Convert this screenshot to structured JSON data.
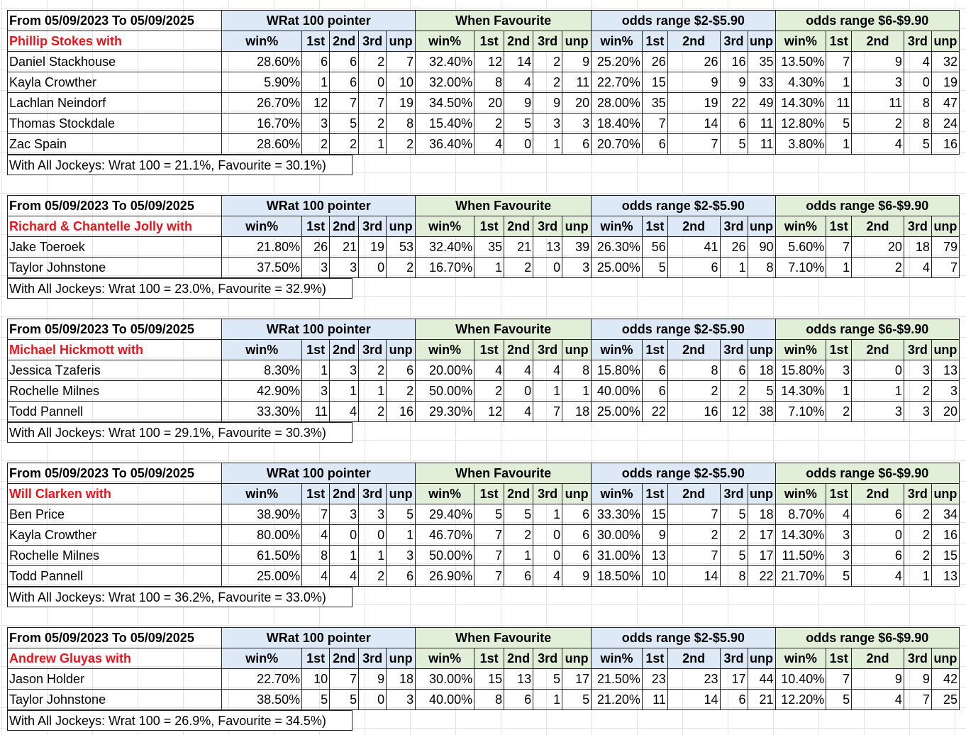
{
  "headers": {
    "range": "From 05/09/2023 To 05/09/2025",
    "wrat": "WRat 100 pointer",
    "fav": "When Favourite",
    "odds1": "odds range $2-$5.90",
    "odds2": "odds range $6-$9.90",
    "cols": [
      "win%",
      "1st",
      "2nd",
      "3rd",
      "unp"
    ]
  },
  "blocks": [
    {
      "trainer": "Phillip Stokes with",
      "summary": "With All Jockeys: Wrat 100 = 21.1%, Favourite = 30.1%)",
      "rows": [
        [
          "Daniel Stackhouse",
          "28.60%",
          "6",
          "6",
          "2",
          "7",
          "32.40%",
          "12",
          "14",
          "2",
          "9",
          "25.20%",
          "26",
          "26",
          "16",
          "35",
          "13.50%",
          "7",
          "9",
          "4",
          "32"
        ],
        [
          "Kayla Crowther",
          "5.90%",
          "1",
          "6",
          "0",
          "10",
          "32.00%",
          "8",
          "4",
          "2",
          "11",
          "22.70%",
          "15",
          "9",
          "9",
          "33",
          "4.30%",
          "1",
          "3",
          "0",
          "19"
        ],
        [
          "Lachlan Neindorf",
          "26.70%",
          "12",
          "7",
          "7",
          "19",
          "34.50%",
          "20",
          "9",
          "9",
          "20",
          "28.00%",
          "35",
          "19",
          "22",
          "49",
          "14.30%",
          "11",
          "11",
          "8",
          "47"
        ],
        [
          "Thomas Stockdale",
          "16.70%",
          "3",
          "5",
          "2",
          "8",
          "15.40%",
          "2",
          "5",
          "3",
          "3",
          "18.40%",
          "7",
          "14",
          "6",
          "11",
          "12.80%",
          "5",
          "2",
          "8",
          "24"
        ],
        [
          "Zac Spain",
          "28.60%",
          "2",
          "2",
          "1",
          "2",
          "36.40%",
          "4",
          "0",
          "1",
          "6",
          "20.70%",
          "6",
          "7",
          "5",
          "11",
          "3.80%",
          "1",
          "4",
          "5",
          "16"
        ]
      ]
    },
    {
      "trainer": "Richard & Chantelle Jolly with",
      "summary": "With All Jockeys: Wrat 100 = 23.0%, Favourite = 32.9%)",
      "rows": [
        [
          "Jake Toeroek",
          "21.80%",
          "26",
          "21",
          "19",
          "53",
          "32.40%",
          "35",
          "21",
          "13",
          "39",
          "26.30%",
          "56",
          "41",
          "26",
          "90",
          "5.60%",
          "7",
          "20",
          "18",
          "79"
        ],
        [
          "Taylor Johnstone",
          "37.50%",
          "3",
          "3",
          "0",
          "2",
          "16.70%",
          "1",
          "2",
          "0",
          "3",
          "25.00%",
          "5",
          "6",
          "1",
          "8",
          "7.10%",
          "1",
          "2",
          "4",
          "7"
        ]
      ]
    },
    {
      "trainer": "Michael Hickmott with",
      "summary": "With All Jockeys: Wrat 100 = 29.1%, Favourite = 30.3%)",
      "rows": [
        [
          "Jessica Tzaferis",
          "8.30%",
          "1",
          "3",
          "2",
          "6",
          "20.00%",
          "4",
          "4",
          "4",
          "8",
          "15.80%",
          "6",
          "8",
          "6",
          "18",
          "15.80%",
          "3",
          "0",
          "3",
          "13"
        ],
        [
          "Rochelle Milnes",
          "42.90%",
          "3",
          "1",
          "1",
          "2",
          "50.00%",
          "2",
          "0",
          "1",
          "1",
          "40.00%",
          "6",
          "2",
          "2",
          "5",
          "14.30%",
          "1",
          "1",
          "2",
          "3"
        ],
        [
          "Todd Pannell",
          "33.30%",
          "11",
          "4",
          "2",
          "16",
          "29.30%",
          "12",
          "4",
          "7",
          "18",
          "25.00%",
          "22",
          "16",
          "12",
          "38",
          "7.10%",
          "2",
          "3",
          "3",
          "20"
        ]
      ]
    },
    {
      "trainer": "Will Clarken with",
      "summary": "With All Jockeys: Wrat 100 = 36.2%, Favourite = 33.0%)",
      "rows": [
        [
          "Ben Price",
          "38.90%",
          "7",
          "3",
          "3",
          "5",
          "29.40%",
          "5",
          "5",
          "1",
          "6",
          "33.30%",
          "15",
          "7",
          "5",
          "18",
          "8.70%",
          "4",
          "6",
          "2",
          "34"
        ],
        [
          "Kayla Crowther",
          "80.00%",
          "4",
          "0",
          "0",
          "1",
          "46.70%",
          "7",
          "2",
          "0",
          "6",
          "30.00%",
          "9",
          "2",
          "2",
          "17",
          "14.30%",
          "3",
          "0",
          "2",
          "16"
        ],
        [
          "Rochelle Milnes",
          "61.50%",
          "8",
          "1",
          "1",
          "3",
          "50.00%",
          "7",
          "1",
          "0",
          "6",
          "31.00%",
          "13",
          "7",
          "5",
          "17",
          "11.50%",
          "3",
          "6",
          "2",
          "15"
        ],
        [
          "Todd Pannell",
          "25.00%",
          "4",
          "4",
          "2",
          "6",
          "26.90%",
          "7",
          "6",
          "4",
          "9",
          "18.50%",
          "10",
          "14",
          "8",
          "22",
          "21.70%",
          "5",
          "4",
          "1",
          "13"
        ]
      ]
    },
    {
      "trainer": "Andrew Gluyas with",
      "summary": "With All Jockeys: Wrat 100 = 26.9%, Favourite = 34.5%)",
      "rows": [
        [
          "Jason Holder",
          "22.70%",
          "10",
          "7",
          "9",
          "18",
          "30.00%",
          "15",
          "13",
          "5",
          "17",
          "21.50%",
          "23",
          "23",
          "17",
          "44",
          "10.40%",
          "7",
          "9",
          "9",
          "42"
        ],
        [
          "Taylor Johnstone",
          "38.50%",
          "5",
          "5",
          "0",
          "3",
          "40.00%",
          "8",
          "6",
          "1",
          "5",
          "21.20%",
          "11",
          "14",
          "6",
          "21",
          "12.20%",
          "5",
          "4",
          "7",
          "25"
        ]
      ]
    }
  ]
}
